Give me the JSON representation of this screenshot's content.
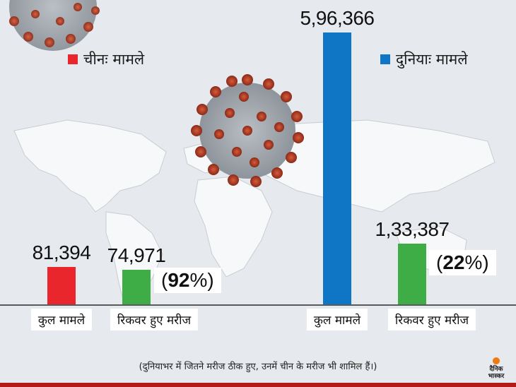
{
  "legend": {
    "china": "चीनः मामले",
    "world": "दुनियाः मामले"
  },
  "colors": {
    "china_total": "#e8262b",
    "recovered": "#3fad46",
    "world_total": "#0f76c6"
  },
  "chart_data": {
    "type": "bar",
    "groups": [
      {
        "name": "चीनः मामले",
        "categories": [
          "कुल मामले",
          "रिकवर हुए मरीज"
        ],
        "values": [
          81394,
          74971
        ],
        "value_labels": [
          "81,394",
          "74,971"
        ],
        "recovered_percent_label": "(92%)"
      },
      {
        "name": "दुनियाः मामले",
        "categories": [
          "कुल मामले",
          "रिकवर हुए मरीज"
        ],
        "values": [
          596366,
          133387
        ],
        "value_labels": [
          "5,96,366",
          "1,33,387"
        ],
        "recovered_percent_label": "(22%)"
      }
    ],
    "scale": "broken",
    "grid": false,
    "legend_placement": "top"
  },
  "pct": {
    "china": {
      "num": "92",
      "sym": "%"
    },
    "world": {
      "num": "22",
      "sym": "%"
    }
  },
  "footnote": "(दुनियाभर में जितने मरीज ठीक हुए, उनमें चीन के मरीज भी शामिल हैं।)",
  "logo": {
    "line1": "दैनिक",
    "line2": "भास्कर"
  }
}
